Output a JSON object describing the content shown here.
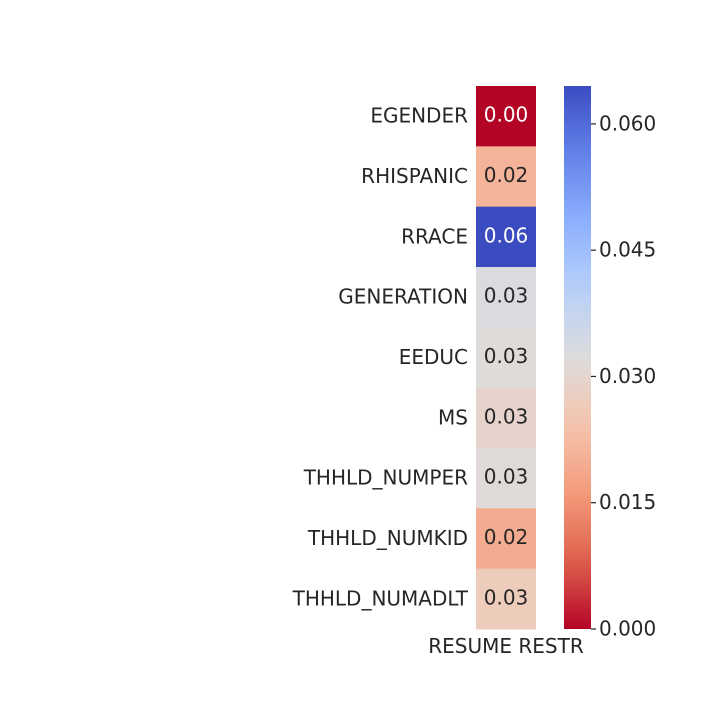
{
  "chart_data": {
    "type": "heatmap",
    "rows": [
      "EGENDER",
      "RHISPANIC",
      "RRACE",
      "GENERATION",
      "EEDUC",
      "MS",
      "THHLD_NUMPER",
      "THHLD_NUMKID",
      "THHLD_NUMADLT"
    ],
    "columns": [
      "RESUME RESTR"
    ],
    "values": [
      0.0,
      0.021,
      0.0645,
      0.0332,
      0.0318,
      0.0293,
      0.0315,
      0.0195,
      0.0268
    ],
    "cell_labels": [
      "0.00",
      "0.02",
      "0.06",
      "0.03",
      "0.03",
      "0.03",
      "0.03",
      "0.02",
      "0.03"
    ],
    "colormap": "coolwarm_r",
    "colorbar": {
      "range": [
        0.0,
        0.0645
      ],
      "ticks": [
        0.0,
        0.015,
        0.03,
        0.045,
        0.06
      ],
      "tick_labels": [
        "0.000",
        "0.015",
        "0.030",
        "0.045",
        "0.060"
      ]
    },
    "colors": {
      "low": "#b40426",
      "mid": "#dddcdc",
      "high": "#3b4cc0"
    }
  }
}
